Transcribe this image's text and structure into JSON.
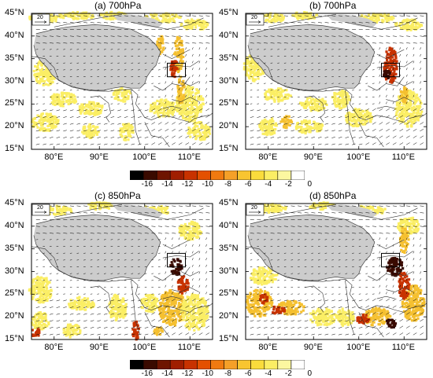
{
  "panels": [
    {
      "title": "(a) 700hPa",
      "ref_vector": "20"
    },
    {
      "title": "(b) 700hPa",
      "ref_vector": "20"
    },
    {
      "title": "(c) 850hPa",
      "ref_vector": "20"
    },
    {
      "title": "(d) 850hPa",
      "ref_vector": "20"
    }
  ],
  "lat_labels": [
    "45°N",
    "40°N",
    "35°N",
    "30°N",
    "25°N",
    "20°N",
    "15°N"
  ],
  "lon_labels": [
    "80°E",
    "90°E",
    "100°E",
    "110°E"
  ],
  "colorbar": {
    "labels": [
      "-16",
      "-14",
      "-12",
      "-10",
      "-8",
      "-6",
      "-4",
      "-2",
      "0"
    ],
    "colors": [
      "#000000",
      "#3a0a00",
      "#6e1400",
      "#a01e00",
      "#c83200",
      "#e45000",
      "#f07a10",
      "#f5a028",
      "#f8c530",
      "#fadc3c",
      "#fbee64",
      "#fcf7a0",
      "#ffffff"
    ]
  },
  "colors": {
    "plateau": "#cccccc",
    "shading_light": "#fbee64",
    "shading_mid": "#f5c030",
    "shading_strong": "#c83200",
    "shading_extreme": "#3a0a00"
  }
}
